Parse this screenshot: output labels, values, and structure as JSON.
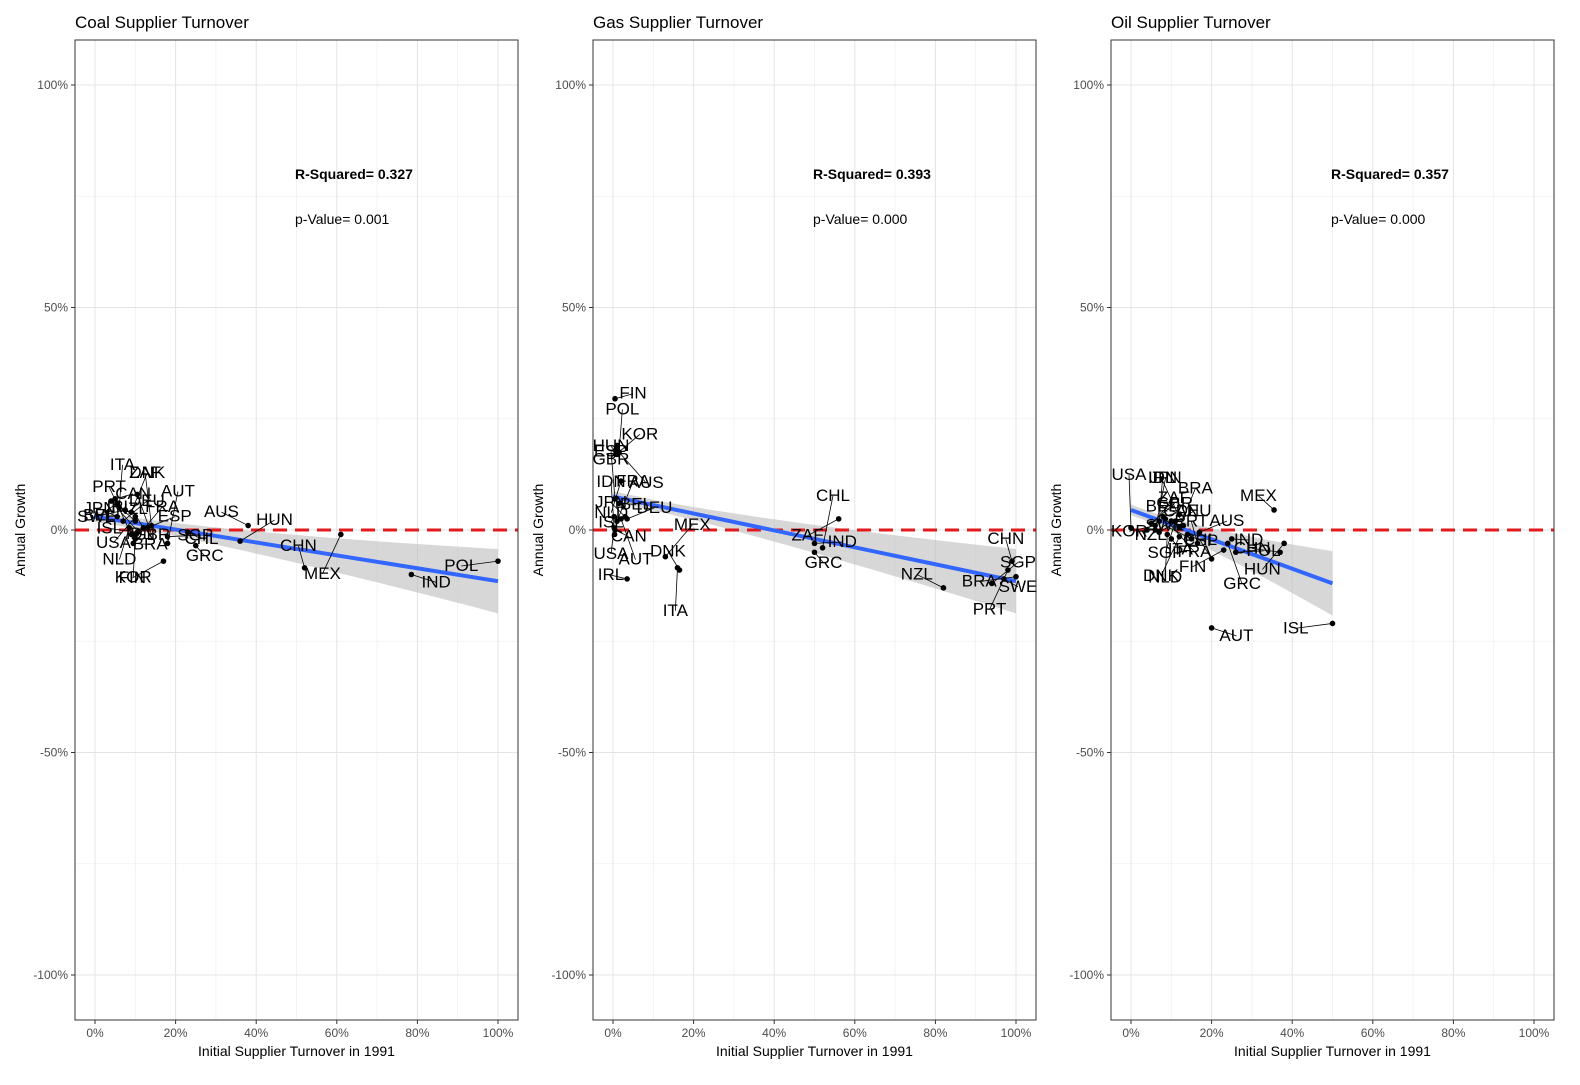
{
  "chart_data": [
    {
      "type": "scatter",
      "title": "Coal Supplier Turnover",
      "xlabel": "Initial Supplier Turnover in 1991",
      "ylabel": "Annual Growth",
      "xlim": [
        0,
        1
      ],
      "ylim": [
        -1,
        1
      ],
      "x_ticks": [
        "0%",
        "20%",
        "40%",
        "60%",
        "80%",
        "100%"
      ],
      "y_ticks": [
        "-100%",
        "-50%",
        "0%",
        "50%",
        "100%"
      ],
      "stats": {
        "r2_label": "R-Squared=",
        "r2_value": "0.327",
        "p_label": "p-Value=",
        "p_value": "0.001"
      },
      "fit": {
        "x": [
          0,
          1
        ],
        "y": [
          0.03,
          -0.115
        ]
      },
      "points": [
        {
          "label": "CAN",
          "x": 0.05,
          "y": 0.07
        },
        {
          "label": "SWE",
          "x": 0.055,
          "y": 0.06
        },
        {
          "label": "ITA",
          "x": 0.06,
          "y": 0.05
        },
        {
          "label": "IDN",
          "x": 0.04,
          "y": 0.065
        },
        {
          "label": "JPN",
          "x": 0.055,
          "y": 0.03
        },
        {
          "label": "DEU",
          "x": 0.07,
          "y": 0.02
        },
        {
          "label": "NLD",
          "x": 0.085,
          "y": 0.005
        },
        {
          "label": "PRT",
          "x": 0.09,
          "y": -0.01
        },
        {
          "label": "BRA",
          "x": 0.095,
          "y": -0.03
        },
        {
          "label": "BEL",
          "x": 0.075,
          "y": 0.045
        },
        {
          "label": "DNK",
          "x": 0.09,
          "y": 0.04
        },
        {
          "label": "GBR",
          "x": 0.105,
          "y": 0.08
        },
        {
          "label": "IRL",
          "x": 0.1,
          "y": 0.02
        },
        {
          "label": "ESP",
          "x": 0.13,
          "y": 0.005
        },
        {
          "label": "USA",
          "x": 0.1,
          "y": 0.03
        },
        {
          "label": "ZAF",
          "x": 0.14,
          "y": 0.01
        },
        {
          "label": "CHL",
          "x": 0.23,
          "y": -0.005
        },
        {
          "label": "ISL",
          "x": 0.105,
          "y": -0.005
        },
        {
          "label": "FRA",
          "x": 0.1,
          "y": -0.02
        },
        {
          "label": "KOR",
          "x": 0.1,
          "y": -0.01
        },
        {
          "label": "NZL",
          "x": 0.12,
          "y": 0.005
        },
        {
          "label": "SGP",
          "x": 0.18,
          "y": -0.015
        },
        {
          "label": "FIN",
          "x": 0.17,
          "y": -0.07
        },
        {
          "label": "AUT",
          "x": 0.18,
          "y": -0.03
        },
        {
          "label": "GRC",
          "x": 0.25,
          "y": -0.035
        },
        {
          "label": "AUS",
          "x": 0.38,
          "y": 0.01
        },
        {
          "label": "HUN",
          "x": 0.36,
          "y": -0.025
        },
        {
          "label": "MEX",
          "x": 0.61,
          "y": -0.01
        },
        {
          "label": "CHN",
          "x": 0.52,
          "y": -0.085
        },
        {
          "label": "IND",
          "x": 0.785,
          "y": -0.1
        },
        {
          "label": "POL",
          "x": 1.0,
          "y": -0.07
        }
      ]
    },
    {
      "type": "scatter",
      "title": "Gas Supplier Turnover",
      "xlabel": "Initial Supplier Turnover in 1991",
      "ylabel": "Annual Growth",
      "xlim": [
        0,
        1
      ],
      "ylim": [
        -1,
        1
      ],
      "x_ticks": [
        "0%",
        "20%",
        "40%",
        "60%",
        "80%",
        "100%"
      ],
      "y_ticks": [
        "-100%",
        "-50%",
        "0%",
        "50%",
        "100%"
      ],
      "stats": {
        "r2_label": "R-Squared=",
        "r2_value": "0.393",
        "p_label": "p-Value=",
        "p_value": "0.000"
      },
      "fit": {
        "x": [
          0,
          1
        ],
        "y": [
          0.075,
          -0.115
        ]
      },
      "points": [
        {
          "label": "FIN",
          "x": 0.005,
          "y": 0.295
        },
        {
          "label": "GBR",
          "x": 0.01,
          "y": 0.19
        },
        {
          "label": "POL",
          "x": 0.015,
          "y": 0.175
        },
        {
          "label": "AUS",
          "x": 0.01,
          "y": 0.18
        },
        {
          "label": "HUN",
          "x": 0.012,
          "y": 0.17
        },
        {
          "label": "KOR",
          "x": 0.008,
          "y": 0.17
        },
        {
          "label": "NLD",
          "x": 0.02,
          "y": 0.11
        },
        {
          "label": "ESP",
          "x": 0.005,
          "y": 0.07
        },
        {
          "label": "BEL",
          "x": 0.015,
          "y": 0.06
        },
        {
          "label": "ISL",
          "x": 0.003,
          "y": 0.03
        },
        {
          "label": "FRA",
          "x": 0.01,
          "y": 0.02
        },
        {
          "label": "AUT",
          "x": 0.02,
          "y": 0.025
        },
        {
          "label": "JPN",
          "x": 0.03,
          "y": 0.03
        },
        {
          "label": "DEU",
          "x": 0.035,
          "y": 0.025
        },
        {
          "label": "USA",
          "x": 0.003,
          "y": 0.005
        },
        {
          "label": "IDN",
          "x": 0.004,
          "y": -0.01
        },
        {
          "label": "CAN",
          "x": 0.005,
          "y": 0.0
        },
        {
          "label": "IRL",
          "x": 0.035,
          "y": -0.11
        },
        {
          "label": "MEX",
          "x": 0.13,
          "y": -0.06
        },
        {
          "label": "ITA",
          "x": 0.16,
          "y": -0.085
        },
        {
          "label": "DNK",
          "x": 0.165,
          "y": -0.09
        },
        {
          "label": "IND",
          "x": 0.5,
          "y": -0.03
        },
        {
          "label": "ZAF",
          "x": 0.56,
          "y": 0.025
        },
        {
          "label": "CHL",
          "x": 0.52,
          "y": -0.04
        },
        {
          "label": "GRC",
          "x": 0.5,
          "y": -0.05
        },
        {
          "label": "NZL",
          "x": 0.82,
          "y": -0.13
        },
        {
          "label": "SGP",
          "x": 0.94,
          "y": -0.12
        },
        {
          "label": "PRT",
          "x": 0.98,
          "y": -0.09
        },
        {
          "label": "CHN",
          "x": 0.99,
          "y": -0.07
        },
        {
          "label": "SWE",
          "x": 0.97,
          "y": -0.11
        },
        {
          "label": "BRA",
          "x": 1.0,
          "y": -0.105
        }
      ]
    },
    {
      "type": "scatter",
      "title": "Oil Supplier Turnover",
      "xlabel": "Initial Supplier Turnover in 1991",
      "ylabel": "Annual Growth",
      "xlim": [
        0,
        1
      ],
      "ylim": [
        -1,
        1
      ],
      "x_ticks": [
        "0%",
        "20%",
        "40%",
        "60%",
        "80%",
        "100%"
      ],
      "y_ticks": [
        "-100%",
        "-50%",
        "0%",
        "50%",
        "100%"
      ],
      "stats": {
        "r2_label": "R-Squared=",
        "r2_value": "0.357",
        "p_label": "p-Value=",
        "p_value": "0.000"
      },
      "fit": {
        "x": [
          0,
          0.5
        ],
        "y": [
          0.045,
          -0.12
        ]
      },
      "points": [
        {
          "label": "CAN",
          "x": 0.08,
          "y": 0.03
        },
        {
          "label": "NZL",
          "x": 0.1,
          "y": 0.02
        },
        {
          "label": "IDN",
          "x": 0.07,
          "y": 0.02
        },
        {
          "label": "FRA",
          "x": 0.085,
          "y": 0.025
        },
        {
          "label": "BEL",
          "x": 0.12,
          "y": 0.035
        },
        {
          "label": "GBR",
          "x": 0.05,
          "y": 0.015
        },
        {
          "label": "SGP",
          "x": 0.11,
          "y": 0.02
        },
        {
          "label": "IRL",
          "x": 0.13,
          "y": 0.01
        },
        {
          "label": "IND",
          "x": 0.25,
          "y": -0.02
        },
        {
          "label": "KOR",
          "x": 0.06,
          "y": 0.01
        },
        {
          "label": "BRA",
          "x": 0.12,
          "y": 0.005
        },
        {
          "label": "GRC",
          "x": 0.24,
          "y": -0.03
        },
        {
          "label": "MEX",
          "x": 0.355,
          "y": 0.045
        },
        {
          "label": "AUS",
          "x": 0.17,
          "y": -0.005
        },
        {
          "label": "HUN",
          "x": 0.38,
          "y": -0.03
        },
        {
          "label": "USA",
          "x": 0.0,
          "y": 0.005
        },
        {
          "label": "ESP",
          "x": 0.14,
          "y": -0.01
        },
        {
          "label": "CHN",
          "x": 0.37,
          "y": -0.05
        },
        {
          "label": "ZAF",
          "x": 0.04,
          "y": 0.0
        },
        {
          "label": "NLD",
          "x": 0.09,
          "y": -0.01
        },
        {
          "label": "CHL",
          "x": 0.2,
          "y": -0.065
        },
        {
          "label": "POL",
          "x": 0.26,
          "y": -0.05
        },
        {
          "label": "FIN",
          "x": 0.23,
          "y": -0.045
        },
        {
          "label": "JPN",
          "x": 0.06,
          "y": 0.0
        },
        {
          "label": "ITA",
          "x": 0.1,
          "y": -0.02
        },
        {
          "label": "SWE",
          "x": 0.15,
          "y": -0.02
        },
        {
          "label": "DEU",
          "x": 0.07,
          "y": -0.005
        },
        {
          "label": "DNK",
          "x": 0.12,
          "y": -0.015
        },
        {
          "label": "PRT",
          "x": 0.165,
          "y": -0.03
        },
        {
          "label": "AUT",
          "x": 0.2,
          "y": -0.22
        },
        {
          "label": "ISL",
          "x": 0.5,
          "y": -0.21
        }
      ]
    }
  ]
}
